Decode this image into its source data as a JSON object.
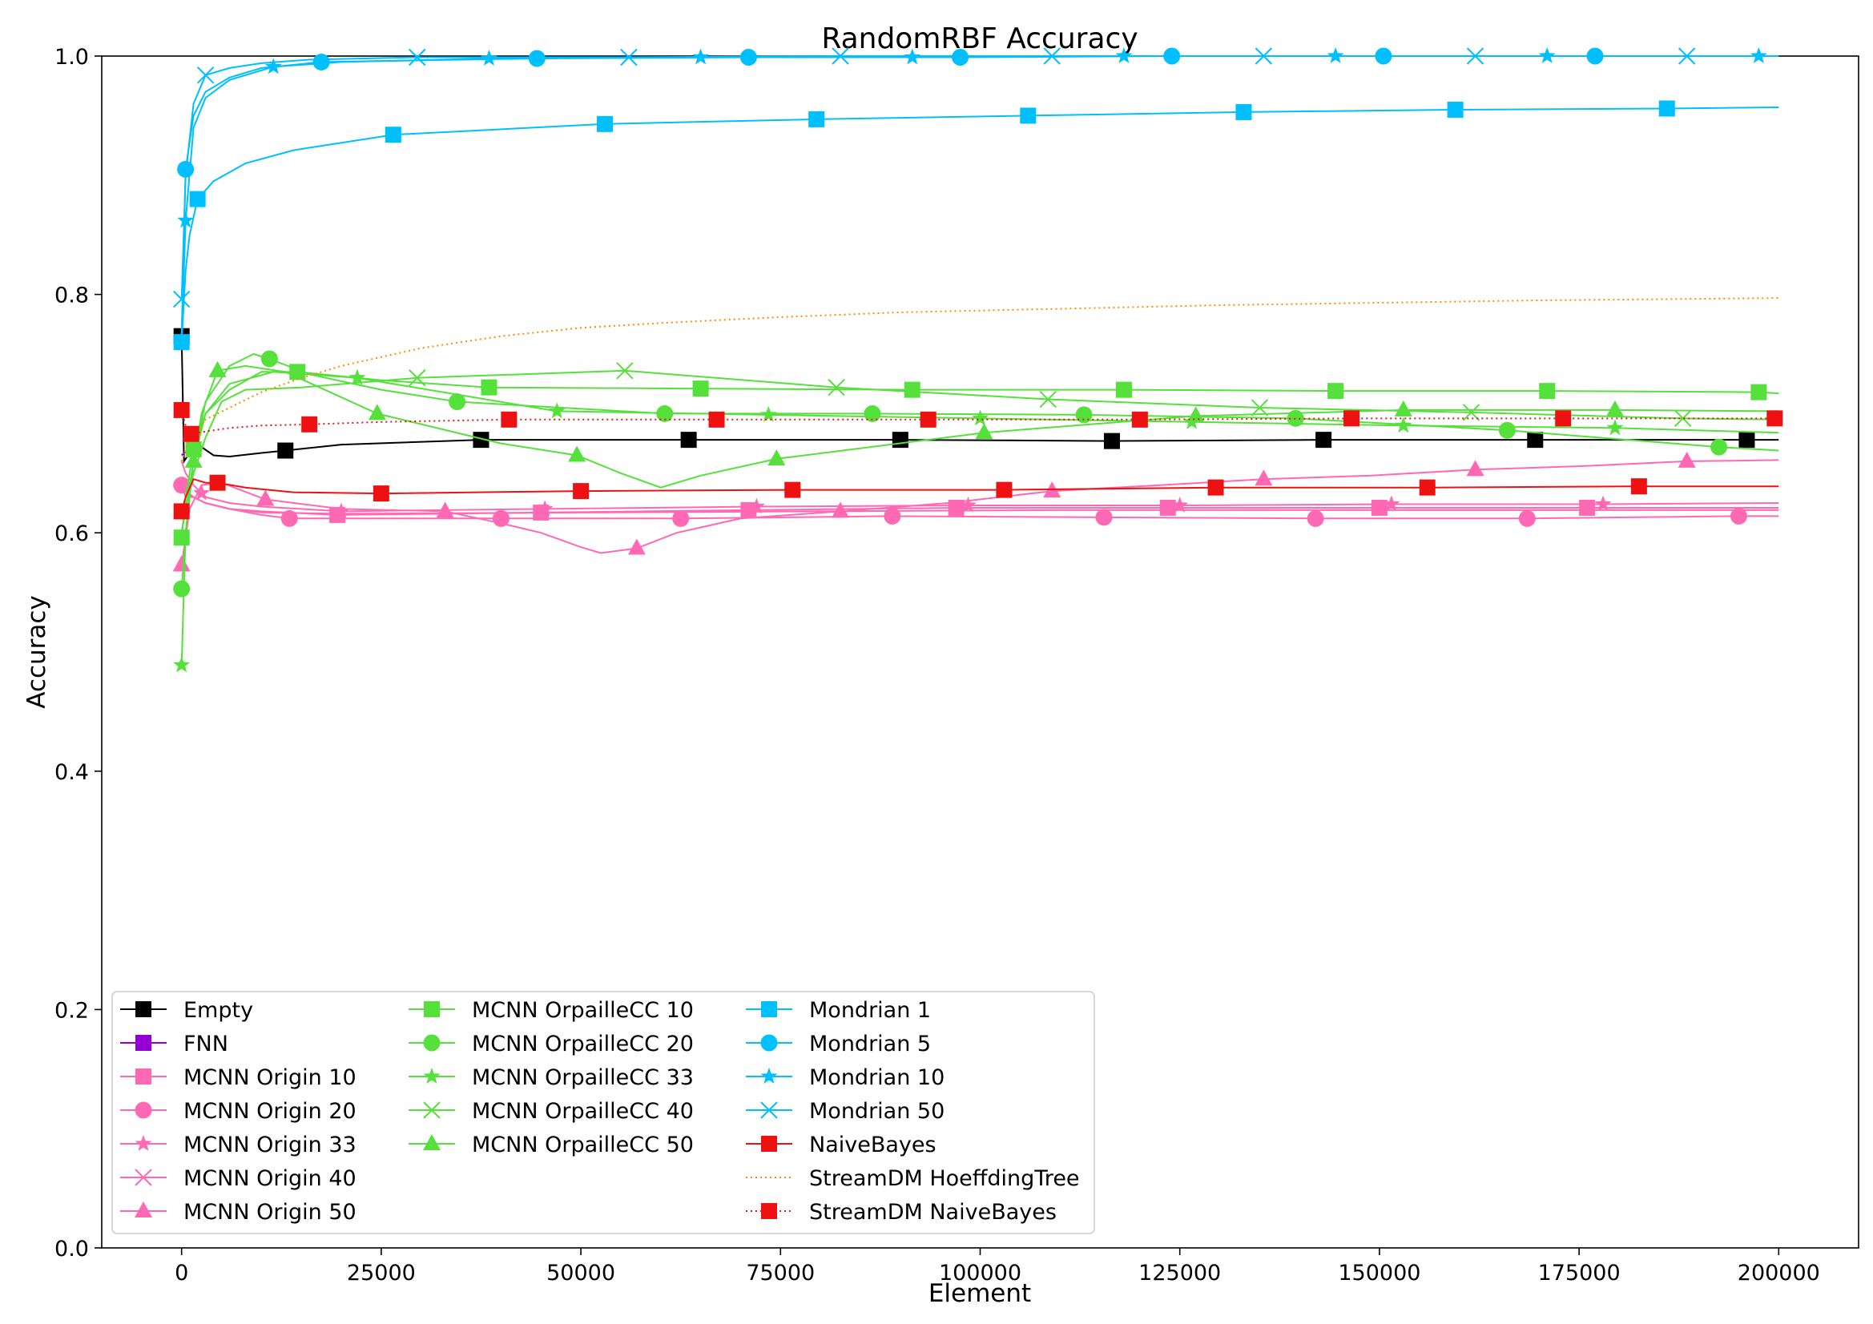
{
  "chart_data": {
    "type": "line",
    "title": "RandomRBF Accuracy",
    "xlabel": "Element",
    "ylabel": "Accuracy",
    "xlim": [
      -10000,
      210000
    ],
    "ylim": [
      0.0,
      1.0
    ],
    "xticks": [
      0,
      25000,
      50000,
      75000,
      100000,
      125000,
      150000,
      175000,
      200000
    ],
    "xtick_labels": [
      "0",
      "25000",
      "50000",
      "75000",
      "100000",
      "125000",
      "150000",
      "175000",
      "200000"
    ],
    "yticks": [
      0.0,
      0.2,
      0.4,
      0.6,
      0.8,
      1.0
    ],
    "ytick_labels": [
      "0.0",
      "0.2",
      "0.4",
      "0.6",
      "0.8",
      "1.0"
    ],
    "grid": false,
    "legend": {
      "placement": "lower-left",
      "columns": 3
    },
    "series": [
      {
        "name": "Empty",
        "color": "#000000",
        "marker": "square",
        "dash": "solid",
        "x": [
          0,
          300,
          800,
          1500,
          2500,
          4000,
          6000,
          10000,
          13000,
          20000,
          37500,
          63500,
          90000,
          116500,
          143000,
          169500,
          196000,
          200000
        ],
        "y": [
          0.765,
          0.66,
          0.665,
          0.668,
          0.672,
          0.665,
          0.664,
          0.667,
          0.669,
          0.674,
          0.678,
          0.678,
          0.678,
          0.677,
          0.678,
          0.678,
          0.678,
          0.678
        ],
        "markers_x": [
          0,
          13000,
          37500,
          63500,
          90000,
          116500,
          143000,
          169500,
          196000
        ]
      },
      {
        "name": "FNN",
        "color": "#9400D3",
        "marker": "square",
        "dash": "solid",
        "x": [
          0,
          500,
          1000
        ],
        "y": [
          0.665,
          0.668,
          0.67
        ],
        "markers_x": []
      },
      {
        "name": "MCNN Origin 10",
        "color": "#FF69B4",
        "marker": "square",
        "dash": "solid",
        "x": [
          0,
          500,
          1500,
          3000,
          6000,
          10000,
          19500,
          45000,
          71000,
          97000,
          123500,
          150000,
          176000,
          200000
        ],
        "y": [
          0.64,
          0.63,
          0.63,
          0.625,
          0.62,
          0.618,
          0.615,
          0.617,
          0.619,
          0.621,
          0.621,
          0.621,
          0.621,
          0.621
        ],
        "markers_x": [
          19500,
          45000,
          71000,
          97000,
          123500,
          150000,
          176000
        ]
      },
      {
        "name": "MCNN Origin 20",
        "color": "#FF69B4",
        "marker": "circle",
        "dash": "solid",
        "x": [
          0,
          500,
          1500,
          3000,
          6000,
          10000,
          13500,
          40000,
          62500,
          89000,
          115500,
          142000,
          168500,
          195000,
          200000
        ],
        "y": [
          0.64,
          0.635,
          0.63,
          0.625,
          0.62,
          0.615,
          0.612,
          0.612,
          0.612,
          0.614,
          0.613,
          0.612,
          0.612,
          0.614,
          0.614
        ],
        "markers_x": [
          0,
          13500,
          40000,
          62500,
          89000,
          115500,
          142000,
          168500,
          195000
        ]
      },
      {
        "name": "MCNN Origin 33",
        "color": "#FF69B4",
        "marker": "star",
        "dash": "solid",
        "x": [
          0,
          500,
          1500,
          3000,
          6000,
          10000,
          20000,
          45500,
          72000,
          98500,
          125000,
          151500,
          178000,
          200000
        ],
        "y": [
          0.66,
          0.65,
          0.64,
          0.63,
          0.625,
          0.622,
          0.618,
          0.62,
          0.622,
          0.623,
          0.623,
          0.624,
          0.624,
          0.625
        ],
        "markers_x": [
          2500,
          20000,
          45500,
          72000,
          98500,
          125000,
          151500,
          178000
        ]
      },
      {
        "name": "MCNN Origin 40",
        "color": "#FF69B4",
        "marker": "x",
        "dash": "solid",
        "x": [
          0,
          500,
          1500,
          3000,
          6000,
          10000,
          20000,
          50000,
          80000,
          110000,
          140000,
          170000,
          200000
        ],
        "y": [
          0.645,
          0.635,
          0.63,
          0.625,
          0.62,
          0.617,
          0.616,
          0.617,
          0.618,
          0.619,
          0.619,
          0.619,
          0.619
        ],
        "markers_x": []
      },
      {
        "name": "MCNN Origin 50",
        "color": "#FF69B4",
        "marker": "triangle",
        "dash": "solid",
        "x": [
          0,
          1000,
          2500,
          5000,
          10500,
          20000,
          33000,
          40000,
          45000,
          50000,
          52500,
          57000,
          62000,
          70000,
          82500,
          96000,
          109000,
          122500,
          135500,
          149000,
          162000,
          175500,
          188500,
          200000
        ],
        "y": [
          0.573,
          0.62,
          0.64,
          0.642,
          0.628,
          0.62,
          0.618,
          0.608,
          0.6,
          0.588,
          0.583,
          0.587,
          0.6,
          0.612,
          0.618,
          0.625,
          0.635,
          0.64,
          0.645,
          0.648,
          0.653,
          0.656,
          0.66,
          0.661
        ],
        "markers_x": [
          0,
          10500,
          33000,
          57000,
          82500,
          109000,
          135500,
          162000,
          188500
        ]
      },
      {
        "name": "MCNN OrpailleCC 10",
        "color": "#55E03B",
        "marker": "square",
        "dash": "solid",
        "x": [
          0,
          500,
          1500,
          3000,
          6000,
          10000,
          14500,
          25000,
          38500,
          65000,
          91500,
          118000,
          144500,
          171000,
          197500,
          200000
        ],
        "y": [
          0.596,
          0.63,
          0.67,
          0.7,
          0.72,
          0.735,
          0.735,
          0.728,
          0.722,
          0.721,
          0.72,
          0.72,
          0.719,
          0.719,
          0.718,
          0.717
        ],
        "markers_x": [
          0,
          1500,
          14500,
          38500,
          65000,
          91500,
          118000,
          144500,
          171000,
          197500
        ]
      },
      {
        "name": "MCNN OrpailleCC 20",
        "color": "#55E03B",
        "marker": "circle",
        "dash": "solid",
        "x": [
          0,
          500,
          1500,
          3000,
          6000,
          9000,
          11000,
          16000,
          25000,
          34500,
          60500,
          86500,
          113000,
          139500,
          166000,
          192500,
          200000
        ],
        "y": [
          0.553,
          0.6,
          0.66,
          0.71,
          0.74,
          0.75,
          0.746,
          0.733,
          0.72,
          0.71,
          0.7,
          0.7,
          0.699,
          0.696,
          0.686,
          0.672,
          0.669
        ],
        "markers_x": [
          0,
          11000,
          34500,
          60500,
          86500,
          113000,
          139500,
          166000,
          192500
        ]
      },
      {
        "name": "MCNN OrpailleCC 33",
        "color": "#55E03B",
        "marker": "star",
        "dash": "solid",
        "x": [
          0,
          500,
          1500,
          3000,
          6000,
          11500,
          22000,
          47000,
          73500,
          100000,
          126500,
          153000,
          179500,
          200000
        ],
        "y": [
          0.489,
          0.6,
          0.66,
          0.7,
          0.725,
          0.735,
          0.73,
          0.702,
          0.699,
          0.696,
          0.693,
          0.69,
          0.688,
          0.684
        ],
        "markers_x": [
          0,
          22000,
          47000,
          73500,
          100000,
          126500,
          153000,
          179500
        ]
      },
      {
        "name": "MCNN OrpailleCC 40",
        "color": "#55E03B",
        "marker": "x",
        "dash": "solid",
        "x": [
          0,
          500,
          1500,
          3000,
          5000,
          8000,
          15000,
          29500,
          55500,
          82000,
          108500,
          135000,
          161500,
          188000,
          200000
        ],
        "y": [
          0.6,
          0.62,
          0.65,
          0.68,
          0.71,
          0.72,
          0.722,
          0.73,
          0.736,
          0.722,
          0.712,
          0.705,
          0.701,
          0.696,
          0.695
        ],
        "markers_x": [
          29500,
          55500,
          82000,
          108500,
          135000,
          161500,
          188000
        ]
      },
      {
        "name": "MCNN OrpailleCC 50",
        "color": "#55E03B",
        "marker": "triangle",
        "dash": "solid",
        "x": [
          0,
          1000,
          2500,
          4500,
          8000,
          13000,
          24500,
          40000,
          49500,
          55000,
          60000,
          65000,
          74500,
          100500,
          127000,
          153000,
          179500,
          200000
        ],
        "y": [
          0.6,
          0.64,
          0.7,
          0.736,
          0.74,
          0.735,
          0.7,
          0.675,
          0.665,
          0.65,
          0.638,
          0.648,
          0.662,
          0.684,
          0.698,
          0.703,
          0.703,
          0.702
        ],
        "markers_x": [
          1500,
          4500,
          24500,
          49500,
          74500,
          100500,
          127000,
          153000,
          179500
        ]
      },
      {
        "name": "Mondrian 1",
        "color": "#00BFFF",
        "marker": "square",
        "dash": "solid",
        "x": [
          0,
          500,
          1000,
          2000,
          4000,
          8000,
          14000,
          26500,
          53000,
          79500,
          106000,
          133000,
          159500,
          186000,
          200000
        ],
        "y": [
          0.76,
          0.82,
          0.85,
          0.88,
          0.895,
          0.91,
          0.921,
          0.934,
          0.943,
          0.947,
          0.95,
          0.953,
          0.955,
          0.956,
          0.957
        ],
        "markers_x": [
          0,
          2000,
          26500,
          53000,
          79500,
          106000,
          133000,
          159500,
          186000
        ]
      },
      {
        "name": "Mondrian 5",
        "color": "#00BFFF",
        "marker": "circle",
        "dash": "solid",
        "x": [
          0,
          500,
          1500,
          3000,
          6000,
          10000,
          17500,
          44500,
          71000,
          97500,
          124000,
          150500,
          177000,
          200000
        ],
        "y": [
          0.765,
          0.905,
          0.95,
          0.97,
          0.982,
          0.99,
          0.995,
          0.998,
          0.999,
          0.999,
          1.0,
          1.0,
          1.0,
          1.0
        ],
        "markers_x": [
          500,
          17500,
          44500,
          71000,
          97500,
          124000,
          150500,
          177000
        ]
      },
      {
        "name": "Mondrian 10",
        "color": "#00BFFF",
        "marker": "star",
        "dash": "solid",
        "x": [
          0,
          500,
          1500,
          3000,
          6000,
          11500,
          20000,
          38500,
          65000,
          91500,
          118000,
          144500,
          171000,
          197500,
          200000
        ],
        "y": [
          0.765,
          0.862,
          0.94,
          0.965,
          0.98,
          0.991,
          0.995,
          0.998,
          0.999,
          0.999,
          1.0,
          1.0,
          1.0,
          1.0,
          1.0
        ],
        "markers_x": [
          500,
          11500,
          38500,
          65000,
          91500,
          118000,
          144500,
          171000,
          197500
        ]
      },
      {
        "name": "Mondrian 50",
        "color": "#00BFFF",
        "marker": "x",
        "dash": "solid",
        "x": [
          0,
          500,
          1500,
          3000,
          6000,
          10000,
          16000,
          29500,
          56000,
          82500,
          109000,
          135500,
          162000,
          188500,
          200000
        ],
        "y": [
          0.796,
          0.9,
          0.96,
          0.984,
          0.99,
          0.994,
          0.997,
          0.999,
          0.999,
          1.0,
          1.0,
          1.0,
          1.0,
          1.0,
          1.0
        ],
        "markers_x": [
          0,
          3000,
          29500,
          56000,
          82500,
          109000,
          135500,
          162000,
          188500
        ]
      },
      {
        "name": "NaiveBayes",
        "color": "#EE1111",
        "marker": "square",
        "dash": "solid",
        "x": [
          0,
          500,
          1500,
          3000,
          4500,
          8000,
          14000,
          25000,
          50000,
          76500,
          103000,
          129500,
          156000,
          182500,
          200000
        ],
        "y": [
          0.618,
          0.63,
          0.645,
          0.642,
          0.642,
          0.638,
          0.634,
          0.633,
          0.635,
          0.636,
          0.636,
          0.638,
          0.638,
          0.639,
          0.639
        ],
        "markers_x": [
          0,
          4500,
          25000,
          50000,
          76500,
          103000,
          129500,
          156000,
          182500
        ]
      },
      {
        "name": "StreamDM HoeffdingTree",
        "color": "#FF8C00",
        "marker": "none",
        "dash": "dotted",
        "x": [
          0,
          1000,
          3000,
          6000,
          10000,
          15000,
          20000,
          30000,
          40000,
          50000,
          60000,
          75000,
          90000,
          110000,
          130000,
          150000,
          170000,
          200000
        ],
        "y": [
          0.66,
          0.68,
          0.695,
          0.705,
          0.718,
          0.73,
          0.74,
          0.755,
          0.765,
          0.772,
          0.776,
          0.781,
          0.785,
          0.788,
          0.791,
          0.793,
          0.795,
          0.797
        ],
        "markers_x": []
      },
      {
        "name": "StreamDM NaiveBayes",
        "color": "#EE1111",
        "marker": "square",
        "dash": "dotted",
        "x": [
          0,
          500,
          1200,
          3000,
          6000,
          10000,
          16000,
          25000,
          41000,
          67000,
          93500,
          120000,
          146500,
          173000,
          199500,
          200000
        ],
        "y": [
          0.703,
          0.69,
          0.683,
          0.685,
          0.688,
          0.69,
          0.691,
          0.693,
          0.695,
          0.695,
          0.695,
          0.695,
          0.696,
          0.696,
          0.696,
          0.696
        ],
        "markers_x": [
          0,
          1200,
          16000,
          41000,
          67000,
          93500,
          120000,
          146500,
          173000,
          199500
        ]
      }
    ]
  }
}
